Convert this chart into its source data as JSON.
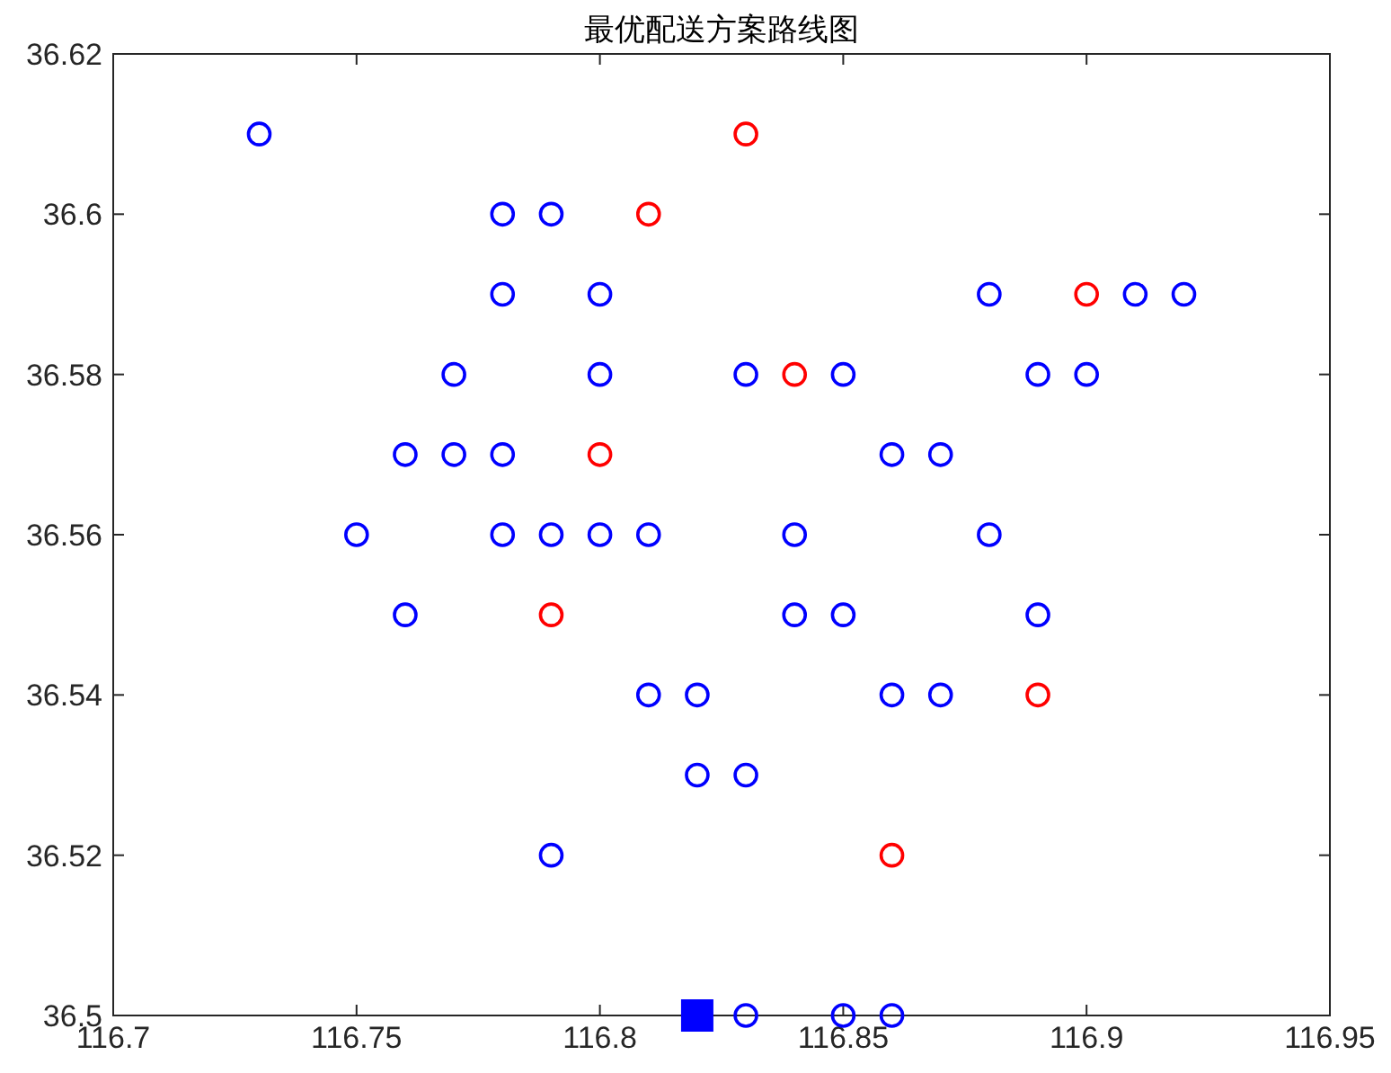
{
  "chart_data": {
    "type": "scatter",
    "title": "最优配送方案路线图",
    "xlim": [
      116.7,
      116.95
    ],
    "ylim": [
      36.5,
      36.62
    ],
    "xticks": [
      116.7,
      116.75,
      116.8,
      116.85,
      116.9,
      116.95
    ],
    "yticks": [
      36.5,
      36.52,
      36.54,
      36.56,
      36.58,
      36.6,
      36.62
    ],
    "grid": false,
    "series": [
      {
        "color": "#0000ff",
        "marker": "circle",
        "x": [
          116.73,
          116.78,
          116.79,
          116.78,
          116.8,
          116.88,
          116.91,
          116.92,
          116.77,
          116.8,
          116.83,
          116.85,
          116.89,
          116.9,
          116.76,
          116.77,
          116.78,
          116.86,
          116.87,
          116.75,
          116.78,
          116.79,
          116.8,
          116.81,
          116.84,
          116.88,
          116.76,
          116.84,
          116.85,
          116.89,
          116.81,
          116.82,
          116.86,
          116.87,
          116.82,
          116.83,
          116.79,
          116.83,
          116.85,
          116.86
        ],
        "values": [
          36.61,
          36.6,
          36.6,
          36.59,
          36.59,
          36.59,
          36.59,
          36.59,
          36.58,
          36.58,
          36.58,
          36.58,
          36.58,
          36.58,
          36.57,
          36.57,
          36.57,
          36.57,
          36.57,
          36.56,
          36.56,
          36.56,
          36.56,
          36.56,
          36.56,
          36.56,
          36.55,
          36.55,
          36.55,
          36.55,
          36.54,
          36.54,
          36.54,
          36.54,
          36.53,
          36.53,
          36.52,
          36.5,
          36.5,
          36.5
        ]
      },
      {
        "color": "#ff0000",
        "marker": "circle",
        "x": [
          116.83,
          116.81,
          116.9,
          116.84,
          116.8,
          116.79,
          116.89,
          116.86
        ],
        "values": [
          36.61,
          36.6,
          36.59,
          36.58,
          36.57,
          36.55,
          36.54,
          36.52
        ]
      },
      {
        "color": "#0000ff",
        "marker": "square",
        "x": [
          116.82
        ],
        "values": [
          36.5
        ]
      }
    ]
  }
}
